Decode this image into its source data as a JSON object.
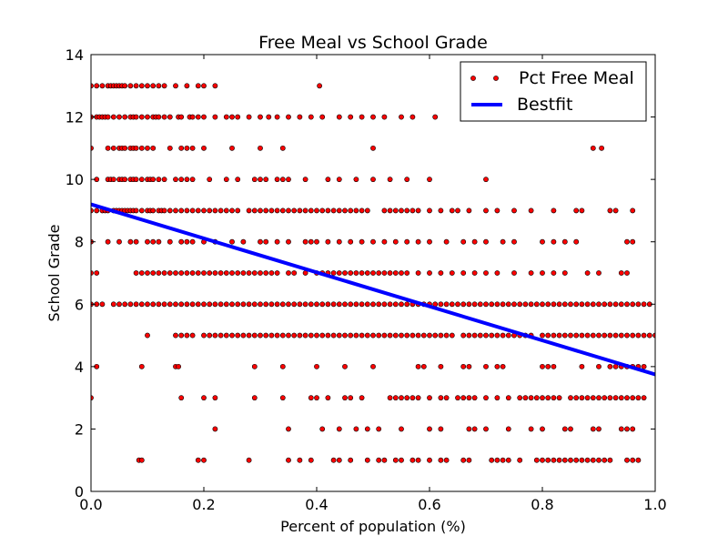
{
  "chart_data": {
    "type": "scatter",
    "title": "Free Meal vs School Grade",
    "xlabel": "Percent of population (%)",
    "ylabel": "School Grade",
    "xlim": [
      0.0,
      1.0
    ],
    "ylim": [
      0,
      14
    ],
    "xticks": [
      "0.0",
      "0.2",
      "0.4",
      "0.6",
      "0.8",
      "1.0"
    ],
    "yticks": [
      "0",
      "2",
      "4",
      "6",
      "8",
      "10",
      "12",
      "14"
    ],
    "grid": false,
    "legend": "top-right",
    "series": [
      {
        "name": "Pct Free Meal",
        "kind": "scatter",
        "color": "#ff0000",
        "edge_color": "#000000",
        "rows": [
          {
            "y": 13,
            "x": [
              0.0,
              0.01,
              0.02,
              0.03,
              0.035,
              0.04,
              0.045,
              0.05,
              0.055,
              0.06,
              0.07,
              0.08,
              0.09,
              0.1,
              0.11,
              0.12,
              0.13,
              0.15,
              0.17,
              0.19,
              0.2,
              0.22,
              0.405
            ]
          },
          {
            "y": 12,
            "x": [
              0.0,
              0.01,
              0.015,
              0.02,
              0.025,
              0.03,
              0.04,
              0.05,
              0.06,
              0.07,
              0.075,
              0.08,
              0.09,
              0.1,
              0.11,
              0.115,
              0.12,
              0.13,
              0.14,
              0.155,
              0.16,
              0.175,
              0.18,
              0.19,
              0.2,
              0.22,
              0.24,
              0.25,
              0.26,
              0.28,
              0.3,
              0.315,
              0.33,
              0.35,
              0.37,
              0.39,
              0.41,
              0.44,
              0.46,
              0.48,
              0.5,
              0.52,
              0.55,
              0.57,
              0.61,
              0.66,
              0.7,
              0.8
            ]
          },
          {
            "y": 11,
            "x": [
              0.0,
              0.03,
              0.04,
              0.05,
              0.055,
              0.06,
              0.07,
              0.075,
              0.08,
              0.09,
              0.1,
              0.11,
              0.14,
              0.16,
              0.17,
              0.18,
              0.2,
              0.25,
              0.3,
              0.34,
              0.5,
              0.89,
              0.905
            ]
          },
          {
            "y": 10,
            "x": [
              0.01,
              0.03,
              0.035,
              0.04,
              0.05,
              0.055,
              0.06,
              0.07,
              0.075,
              0.08,
              0.09,
              0.1,
              0.105,
              0.11,
              0.12,
              0.13,
              0.15,
              0.16,
              0.17,
              0.18,
              0.21,
              0.24,
              0.26,
              0.29,
              0.3,
              0.31,
              0.33,
              0.34,
              0.35,
              0.38,
              0.42,
              0.44,
              0.47,
              0.5,
              0.53,
              0.56,
              0.6,
              0.7
            ]
          },
          {
            "y": 9,
            "x": [
              0.0,
              0.01,
              0.02,
              0.025,
              0.03,
              0.04,
              0.045,
              0.05,
              0.055,
              0.06,
              0.065,
              0.07,
              0.075,
              0.08,
              0.09,
              0.1,
              0.105,
              0.11,
              0.12,
              0.125,
              0.13,
              0.14,
              0.15,
              0.16,
              0.17,
              0.18,
              0.19,
              0.2,
              0.21,
              0.22,
              0.23,
              0.24,
              0.25,
              0.26,
              0.28,
              0.29,
              0.3,
              0.31,
              0.32,
              0.33,
              0.34,
              0.35,
              0.36,
              0.37,
              0.38,
              0.39,
              0.4,
              0.41,
              0.42,
              0.43,
              0.44,
              0.45,
              0.46,
              0.47,
              0.48,
              0.49,
              0.52,
              0.53,
              0.54,
              0.55,
              0.56,
              0.57,
              0.58,
              0.6,
              0.62,
              0.64,
              0.65,
              0.67,
              0.7,
              0.72,
              0.75,
              0.78,
              0.82,
              0.86,
              0.87,
              0.92,
              0.93,
              0.96
            ]
          },
          {
            "y": 8,
            "x": [
              0.0,
              0.03,
              0.05,
              0.07,
              0.08,
              0.1,
              0.11,
              0.12,
              0.14,
              0.16,
              0.17,
              0.18,
              0.2,
              0.22,
              0.25,
              0.27,
              0.3,
              0.31,
              0.33,
              0.35,
              0.38,
              0.39,
              0.4,
              0.42,
              0.44,
              0.46,
              0.48,
              0.5,
              0.52,
              0.54,
              0.56,
              0.58,
              0.6,
              0.63,
              0.66,
              0.68,
              0.7,
              0.73,
              0.75,
              0.8,
              0.82,
              0.84,
              0.86,
              0.95,
              0.96
            ]
          },
          {
            "y": 7,
            "x": [
              0.0,
              0.01,
              0.08,
              0.09,
              0.1,
              0.11,
              0.12,
              0.13,
              0.14,
              0.15,
              0.16,
              0.17,
              0.18,
              0.19,
              0.2,
              0.21,
              0.22,
              0.23,
              0.24,
              0.25,
              0.26,
              0.27,
              0.28,
              0.29,
              0.3,
              0.31,
              0.32,
              0.33,
              0.35,
              0.36,
              0.38,
              0.4,
              0.41,
              0.42,
              0.43,
              0.44,
              0.45,
              0.46,
              0.47,
              0.48,
              0.49,
              0.5,
              0.51,
              0.52,
              0.53,
              0.54,
              0.55,
              0.56,
              0.58,
              0.6,
              0.62,
              0.64,
              0.66,
              0.68,
              0.7,
              0.72,
              0.75,
              0.78,
              0.8,
              0.82,
              0.84,
              0.88,
              0.9,
              0.94,
              0.95
            ]
          },
          {
            "y": 6,
            "x": [
              0.0,
              0.01,
              0.02,
              0.04,
              0.05,
              0.06,
              0.07,
              0.08,
              0.09,
              0.1,
              0.11,
              0.12,
              0.13,
              0.14,
              0.15,
              0.16,
              0.17,
              0.18,
              0.19,
              0.2,
              0.21,
              0.22,
              0.23,
              0.24,
              0.25,
              0.26,
              0.27,
              0.28,
              0.29,
              0.3,
              0.31,
              0.32,
              0.33,
              0.34,
              0.35,
              0.36,
              0.37,
              0.38,
              0.39,
              0.4,
              0.41,
              0.42,
              0.43,
              0.44,
              0.45,
              0.46,
              0.47,
              0.48,
              0.49,
              0.5,
              0.51,
              0.52,
              0.53,
              0.54,
              0.55,
              0.56,
              0.57,
              0.58,
              0.59,
              0.6,
              0.61,
              0.62,
              0.63,
              0.64,
              0.65,
              0.66,
              0.67,
              0.68,
              0.69,
              0.7,
              0.71,
              0.72,
              0.73,
              0.74,
              0.75,
              0.76,
              0.77,
              0.78,
              0.79,
              0.8,
              0.81,
              0.82,
              0.83,
              0.84,
              0.85,
              0.86,
              0.87,
              0.88,
              0.89,
              0.9,
              0.91,
              0.92,
              0.93,
              0.94,
              0.95,
              0.96,
              0.97,
              0.98,
              0.99
            ]
          },
          {
            "y": 5,
            "x": [
              0.1,
              0.15,
              0.16,
              0.17,
              0.18,
              0.2,
              0.21,
              0.22,
              0.23,
              0.24,
              0.25,
              0.26,
              0.27,
              0.28,
              0.29,
              0.3,
              0.31,
              0.32,
              0.33,
              0.34,
              0.35,
              0.36,
              0.37,
              0.38,
              0.39,
              0.4,
              0.41,
              0.42,
              0.43,
              0.44,
              0.45,
              0.46,
              0.47,
              0.48,
              0.49,
              0.5,
              0.51,
              0.52,
              0.53,
              0.54,
              0.55,
              0.56,
              0.57,
              0.58,
              0.59,
              0.6,
              0.61,
              0.62,
              0.63,
              0.64,
              0.66,
              0.67,
              0.68,
              0.69,
              0.7,
              0.71,
              0.72,
              0.73,
              0.74,
              0.75,
              0.76,
              0.77,
              0.78,
              0.8,
              0.81,
              0.82,
              0.83,
              0.84,
              0.85,
              0.86,
              0.87,
              0.88,
              0.89,
              0.9,
              0.91,
              0.92,
              0.93,
              0.94,
              0.95,
              0.96,
              0.97,
              0.98,
              0.99,
              1.0
            ]
          },
          {
            "y": 4,
            "x": [
              0.01,
              0.09,
              0.15,
              0.155,
              0.29,
              0.34,
              0.4,
              0.45,
              0.5,
              0.58,
              0.59,
              0.62,
              0.66,
              0.67,
              0.7,
              0.72,
              0.73,
              0.8,
              0.81,
              0.82,
              0.87,
              0.9,
              0.92,
              0.93,
              0.94,
              0.95,
              0.96,
              0.97,
              0.98
            ]
          },
          {
            "y": 3,
            "x": [
              0.0,
              0.16,
              0.2,
              0.22,
              0.29,
              0.34,
              0.39,
              0.4,
              0.42,
              0.45,
              0.46,
              0.48,
              0.53,
              0.54,
              0.55,
              0.56,
              0.57,
              0.58,
              0.6,
              0.62,
              0.63,
              0.65,
              0.66,
              0.67,
              0.68,
              0.7,
              0.72,
              0.74,
              0.76,
              0.77,
              0.78,
              0.79,
              0.8,
              0.81,
              0.82,
              0.83,
              0.85,
              0.86,
              0.87,
              0.88,
              0.89,
              0.9,
              0.91,
              0.92,
              0.93,
              0.94,
              0.95,
              0.96,
              0.97,
              0.98
            ]
          },
          {
            "y": 2,
            "x": [
              0.22,
              0.35,
              0.41,
              0.44,
              0.47,
              0.49,
              0.51,
              0.55,
              0.6,
              0.62,
              0.67,
              0.68,
              0.7,
              0.74,
              0.78,
              0.8,
              0.84,
              0.85,
              0.89,
              0.9,
              0.94,
              0.95,
              0.96
            ]
          },
          {
            "y": 1,
            "x": [
              0.085,
              0.09,
              0.19,
              0.2,
              0.28,
              0.35,
              0.37,
              0.39,
              0.43,
              0.44,
              0.46,
              0.49,
              0.51,
              0.52,
              0.54,
              0.55,
              0.57,
              0.58,
              0.6,
              0.62,
              0.63,
              0.66,
              0.67,
              0.71,
              0.72,
              0.73,
              0.74,
              0.76,
              0.79,
              0.8,
              0.81,
              0.82,
              0.83,
              0.84,
              0.85,
              0.86,
              0.87,
              0.88,
              0.89,
              0.9,
              0.91,
              0.92,
              0.95,
              0.96,
              0.97
            ]
          }
        ]
      },
      {
        "name": "Bestfit",
        "kind": "line",
        "color": "#0000ff",
        "x": [
          0.0,
          1.0
        ],
        "y": [
          9.2,
          3.75
        ]
      }
    ]
  }
}
